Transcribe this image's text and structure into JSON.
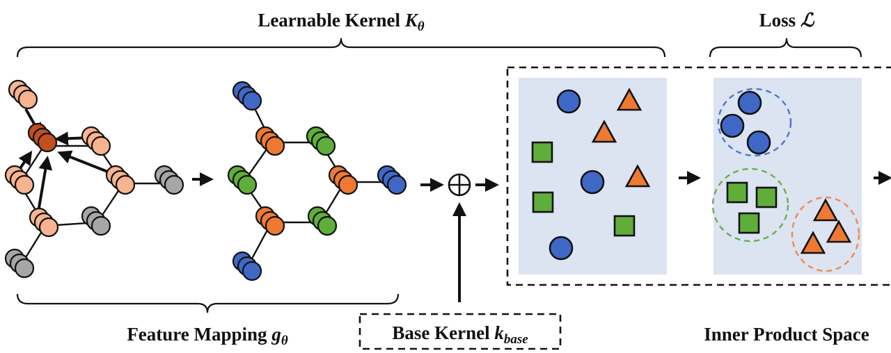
{
  "labels": {
    "learnable_kernel": "Learnable Kernel",
    "learnable_kernel_symbol": "K",
    "learnable_kernel_sub": "θ",
    "loss": "Loss",
    "loss_symbol": "ℒ",
    "feature_mapping": "Feature Mapping",
    "feature_mapping_symbol": "g",
    "feature_mapping_sub": "θ",
    "base_kernel": "Base Kernel",
    "base_kernel_symbol": "k",
    "base_kernel_sub": "base",
    "inner_product_space": "Inner Product Space",
    "oplus": "⊕"
  },
  "colors": {
    "peach": "#F7B48E",
    "dark_orange": "#C0501E",
    "gray": "#A6A6A6",
    "blue": "#3F68C6",
    "orange": "#EE7A32",
    "green": "#5FAE3A",
    "panel": "#DCE3F1",
    "blue_dash": "#4A78C8",
    "green_dash": "#66B04A",
    "orange_dash": "#EE8A4A"
  }
}
